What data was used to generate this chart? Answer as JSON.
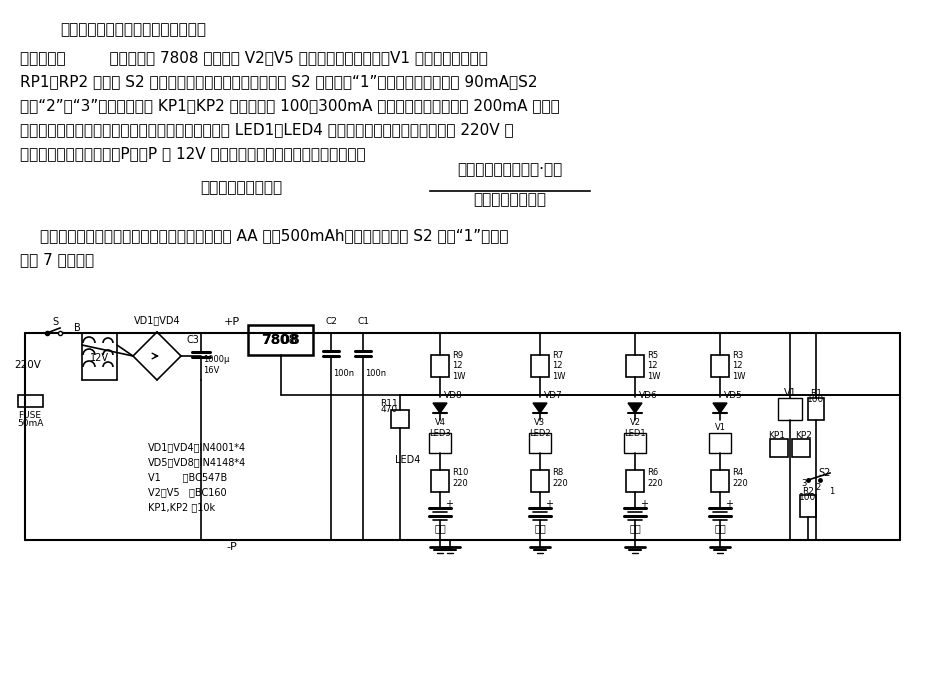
{
  "background_color": "#ffffff",
  "text_color": "#000000",
  "title_line": "本电路可对四节电池同时进行充电。",
  "para1_line1": "电路示于图         三端稳压器 7808 和三极管 V2～V5 组成四路电流源电路，V1 和相应的可变电阑",
  "para1_line2": "RP1、RP2 及开关 S2 用于控制各路充电电流的大小。当 S2 置于位置“1”时每路充电电流均为 90mA，S2",
  "para1_line3": "置于“2”或“3”时，通过调节 KP1、KP2 可得到每路 100～300mA 的充电电流。如果采用 200mA 以上的",
  "para1_line4": "电流充电时，各三极管应加散热器。图中发光二极管 LED1～LED4 作充电指示用。整个电路既可由 220V 市",
  "para1_line5": "电供电，也可通过接头＋P、－P 由 12V 蓄电池供电。充电时间可由下式计算：",
  "formula_label": "充电时间（小时）＝",
  "formula_numerator": "镍镎电池容量（毫安·时）",
  "formula_denominator": "充电电流（毫安）",
  "para2_line1": "实际使用时，充电时间可延长。例如对于常用的 AA 型（500mAh）镍镎电池，当 S2 置于“1”时，约",
  "para2_line2": "充电 7 个小时。",
  "fig_width": 9.31,
  "fig_height": 6.79,
  "dpi": 100
}
